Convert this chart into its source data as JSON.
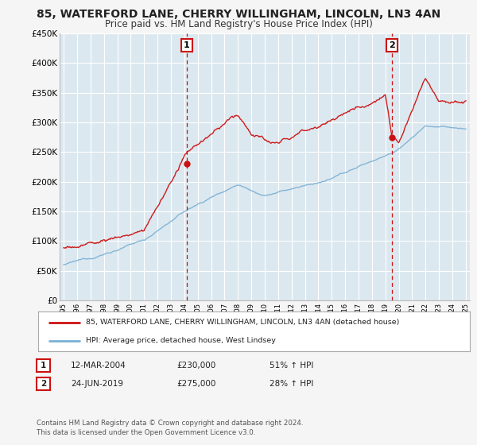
{
  "title": "85, WATERFORD LANE, CHERRY WILLINGHAM, LINCOLN, LN3 4AN",
  "subtitle": "Price paid vs. HM Land Registry's House Price Index (HPI)",
  "title_fontsize": 10,
  "subtitle_fontsize": 8.5,
  "background_color": "#f5f5f5",
  "plot_bg_color": "#dce8f0",
  "grid_color": "#ffffff",
  "ylim": [
    0,
    450000
  ],
  "yticks": [
    0,
    50000,
    100000,
    150000,
    200000,
    250000,
    300000,
    350000,
    400000,
    450000
  ],
  "sale1": {
    "date_num": 2004.19,
    "price": 230000,
    "label": "1"
  },
  "sale2": {
    "date_num": 2019.48,
    "price": 275000,
    "label": "2"
  },
  "legend_line1": "85, WATERFORD LANE, CHERRY WILLINGHAM, LINCOLN, LN3 4AN (detached house)",
  "legend_line2": "HPI: Average price, detached house, West Lindsey",
  "table_row1": [
    "1",
    "12-MAR-2004",
    "£230,000",
    "51% ↑ HPI"
  ],
  "table_row2": [
    "2",
    "24-JUN-2019",
    "£275,000",
    "28% ↑ HPI"
  ],
  "footer": "Contains HM Land Registry data © Crown copyright and database right 2024.\nThis data is licensed under the Open Government Licence v3.0.",
  "hpi_color": "#7ab0d4",
  "price_color": "#cc1111",
  "vline_color": "#cc1111",
  "legend_border": "#aaaaaa",
  "sale_dot_color": "#cc1111"
}
